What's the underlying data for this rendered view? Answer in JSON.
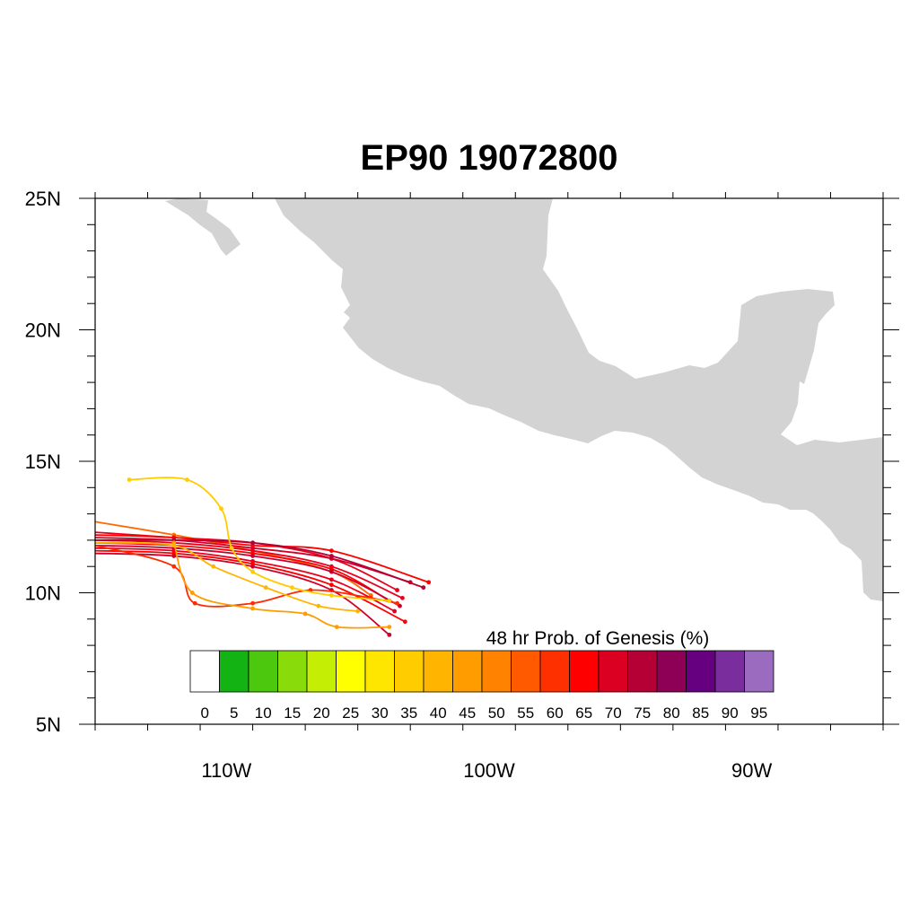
{
  "title": "EP90 19072800",
  "map": {
    "lon_range": [
      -115,
      -85
    ],
    "lat_range": [
      5,
      25
    ],
    "land_color": "#d3d3d3",
    "ocean_color": "#ffffff",
    "y_ticks": [
      {
        "lat": 25,
        "label": "25N"
      },
      {
        "lat": 20,
        "label": "20N"
      },
      {
        "lat": 15,
        "label": "15N"
      },
      {
        "lat": 10,
        "label": "10N"
      },
      {
        "lat": 5,
        "label": "5N"
      }
    ],
    "x_ticks": [
      {
        "lon": -110,
        "label": "110W"
      },
      {
        "lon": -100,
        "label": "100W"
      },
      {
        "lon": -90,
        "label": "90W"
      }
    ]
  },
  "colorbar": {
    "title": "48 hr Prob. of Genesis (%)",
    "labels": [
      "0",
      "5",
      "10",
      "15",
      "20",
      "25",
      "30",
      "35",
      "40",
      "45",
      "50",
      "55",
      "60",
      "65",
      "70",
      "75",
      "80",
      "85",
      "90",
      "95"
    ],
    "colors": [
      "#ffffff",
      "#12b312",
      "#4cc80e",
      "#89dc0a",
      "#c4ef04",
      "#ffff00",
      "#ffe600",
      "#ffcc00",
      "#ffb400",
      "#ff9c00",
      "#ff8200",
      "#ff5a00",
      "#ff3000",
      "#ff0000",
      "#db0022",
      "#b50035",
      "#8e0055",
      "#660080",
      "#7a2e9e",
      "#9b6bbf"
    ]
  },
  "tracks": [
    {
      "color": "#ff6a00",
      "points": [
        [
          -115,
          12.7
        ],
        [
          -112,
          12.2
        ],
        [
          -109,
          11.6
        ],
        [
          -106,
          10.8
        ],
        [
          -104.5,
          9.9
        ]
      ]
    },
    {
      "color": "#e8001e",
      "points": [
        [
          -115,
          12.3
        ],
        [
          -112,
          12.1
        ],
        [
          -109,
          11.9
        ],
        [
          -106,
          11.3
        ],
        [
          -103.5,
          10.1
        ]
      ]
    },
    {
      "color": "#d0002a",
      "points": [
        [
          -115,
          12.1
        ],
        [
          -112,
          12.0
        ],
        [
          -109,
          11.7
        ],
        [
          -106,
          11.3
        ],
        [
          -103.0,
          10.4
        ]
      ]
    },
    {
      "color": "#e8001e",
      "points": [
        [
          -115,
          12.0
        ],
        [
          -112,
          11.9
        ],
        [
          -109,
          11.6
        ],
        [
          -106,
          11.0
        ],
        [
          -103.3,
          9.8
        ]
      ]
    },
    {
      "color": "#ff0000",
      "points": [
        [
          -115,
          11.9
        ],
        [
          -112,
          11.8
        ],
        [
          -109,
          11.5
        ],
        [
          -106,
          10.9
        ],
        [
          -103.8,
          9.7
        ]
      ]
    },
    {
      "color": "#c80030",
      "points": [
        [
          -115,
          11.8
        ],
        [
          -112,
          11.7
        ],
        [
          -109,
          11.4
        ],
        [
          -106,
          10.8
        ],
        [
          -103.4,
          9.5
        ]
      ]
    },
    {
      "color": "#e8001e",
      "points": [
        [
          -115,
          11.7
        ],
        [
          -112,
          11.6
        ],
        [
          -109,
          11.2
        ],
        [
          -106,
          10.5
        ],
        [
          -103.6,
          9.3
        ]
      ]
    },
    {
      "color": "#ff0000",
      "points": [
        [
          -115,
          11.6
        ],
        [
          -112,
          11.5
        ],
        [
          -109,
          11.1
        ],
        [
          -106,
          10.3
        ],
        [
          -103.2,
          8.9
        ]
      ]
    },
    {
      "color": "#d0002a",
      "points": [
        [
          -115,
          11.5
        ],
        [
          -112,
          11.4
        ],
        [
          -109,
          11.0
        ],
        [
          -106,
          10.1
        ],
        [
          -103.8,
          8.4
        ]
      ]
    },
    {
      "color": "#ff0000",
      "points": [
        [
          -115,
          12.2
        ],
        [
          -112,
          12.1
        ],
        [
          -109,
          11.8
        ],
        [
          -106,
          11.6
        ],
        [
          -102.3,
          10.4
        ]
      ]
    },
    {
      "color": "#b50035",
      "points": [
        [
          -115,
          12.0
        ],
        [
          -112,
          12.0
        ],
        [
          -109,
          11.9
        ],
        [
          -106,
          11.4
        ],
        [
          -102.5,
          10.2
        ]
      ]
    },
    {
      "color": "#ff2a00",
      "points": [
        [
          -115,
          11.8
        ],
        [
          -112,
          11.0
        ],
        [
          -111.2,
          9.6
        ],
        [
          -109,
          9.6
        ],
        [
          -106.8,
          10.1
        ],
        [
          -104.5,
          9.8
        ],
        [
          -103.5,
          9.6
        ]
      ]
    },
    {
      "color": "#ff9c00",
      "points": [
        [
          -112,
          11.9
        ],
        [
          -111.3,
          10.0
        ],
        [
          -109,
          9.4
        ],
        [
          -107.0,
          9.2
        ],
        [
          -105.8,
          8.7
        ],
        [
          -103.8,
          8.7
        ]
      ]
    },
    {
      "color": "#ffb400",
      "points": [
        [
          -115,
          11.9
        ],
        [
          -112,
          11.8
        ],
        [
          -110.5,
          11.0
        ],
        [
          -108.5,
          10.2
        ],
        [
          -106.5,
          9.5
        ],
        [
          -105.0,
          9.3
        ]
      ]
    },
    {
      "color": "#ffcc00",
      "points": [
        [
          -113.7,
          14.3
        ],
        [
          -111.5,
          14.3
        ],
        [
          -110.2,
          13.2
        ],
        [
          -109.8,
          11.7
        ],
        [
          -109,
          10.8
        ],
        [
          -107.5,
          10.2
        ],
        [
          -106.0,
          9.9
        ],
        [
          -103.8,
          9.7
        ]
      ]
    }
  ]
}
